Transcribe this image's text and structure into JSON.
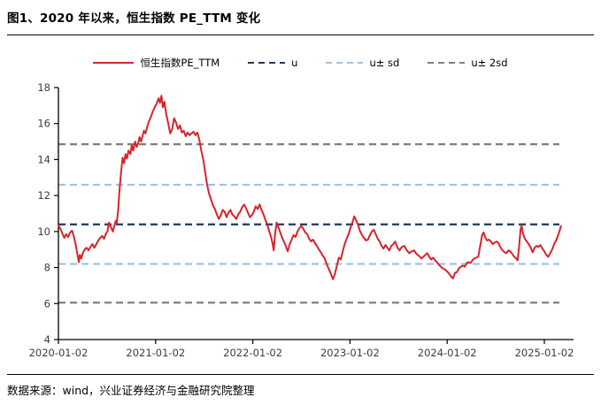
{
  "header": {
    "title": "图1、2020 年以来，恒生指数 PE_TTM 变化"
  },
  "footer": {
    "source": "数据来源：wind，兴业证券经济与金融研究院整理"
  },
  "colors": {
    "series_red": "#d9232b",
    "mean_navy": "#1f3864",
    "sd_lightblue": "#9dc3e6",
    "sd2_gray": "#7f7f7f",
    "axis": "#000000",
    "tick_label": "#3d3d3d"
  },
  "legend": {
    "items": [
      {
        "label": "恒生指数PE_TTM",
        "color": "#d9232b",
        "style": "solid"
      },
      {
        "label": "u",
        "color": "#1f3864",
        "style": "dashed"
      },
      {
        "label": "u± sd",
        "color": "#9dc3e6",
        "style": "dashed"
      },
      {
        "label": "u± 2sd",
        "color": "#7f7f7f",
        "style": "dashed"
      }
    ]
  },
  "chart_data": {
    "type": "line",
    "title": "恒生指数 PE_TTM 变化 (2020年以来)",
    "xlabel": "",
    "ylabel": "",
    "grid": false,
    "legend_position": "top",
    "ylim": [
      4,
      18
    ],
    "y_ticks": [
      4,
      6,
      8,
      10,
      12,
      14,
      16,
      18
    ],
    "x_tick_labels": [
      "2020-01-02",
      "2021-01-02",
      "2022-01-02",
      "2023-01-02",
      "2024-01-02",
      "2025-01-02"
    ],
    "x_tick_years": [
      0,
      1,
      2,
      3,
      4,
      5
    ],
    "x_end_years": 5.17,
    "ref_lines": [
      {
        "name": "u+2sd",
        "value": 14.85,
        "color": "#7f7f7f"
      },
      {
        "name": "u+sd",
        "value": 12.6,
        "color": "#9dc3e6"
      },
      {
        "name": "u",
        "value": 10.4,
        "color": "#1f3864"
      },
      {
        "name": "u-sd",
        "value": 8.2,
        "color": "#9dc3e6"
      },
      {
        "name": "u-2sd",
        "value": 6.05,
        "color": "#7f7f7f"
      }
    ],
    "series": [
      {
        "name": "恒生指数PE_TTM",
        "color": "#d9232b",
        "x_unit": "years_since_2020-01-02",
        "points": [
          [
            0.0,
            10.35
          ],
          [
            0.02,
            10.15
          ],
          [
            0.04,
            9.9
          ],
          [
            0.06,
            9.65
          ],
          [
            0.08,
            9.85
          ],
          [
            0.1,
            9.7
          ],
          [
            0.12,
            9.95
          ],
          [
            0.14,
            10.05
          ],
          [
            0.16,
            9.7
          ],
          [
            0.18,
            9.2
          ],
          [
            0.195,
            8.75
          ],
          [
            0.21,
            8.3
          ],
          [
            0.22,
            8.7
          ],
          [
            0.235,
            8.5
          ],
          [
            0.25,
            8.8
          ],
          [
            0.27,
            9.0
          ],
          [
            0.29,
            9.1
          ],
          [
            0.31,
            8.95
          ],
          [
            0.33,
            9.15
          ],
          [
            0.35,
            9.3
          ],
          [
            0.37,
            9.1
          ],
          [
            0.39,
            9.3
          ],
          [
            0.41,
            9.5
          ],
          [
            0.43,
            9.65
          ],
          [
            0.45,
            9.75
          ],
          [
            0.47,
            9.6
          ],
          [
            0.49,
            9.9
          ],
          [
            0.505,
            10.0
          ],
          [
            0.52,
            10.5
          ],
          [
            0.54,
            10.25
          ],
          [
            0.56,
            10.0
          ],
          [
            0.575,
            10.3
          ],
          [
            0.59,
            10.6
          ],
          [
            0.6,
            10.45
          ],
          [
            0.615,
            11.2
          ],
          [
            0.63,
            12.4
          ],
          [
            0.645,
            13.3
          ],
          [
            0.66,
            14.1
          ],
          [
            0.675,
            13.8
          ],
          [
            0.69,
            14.3
          ],
          [
            0.705,
            14.05
          ],
          [
            0.72,
            14.5
          ],
          [
            0.74,
            14.3
          ],
          [
            0.755,
            14.8
          ],
          [
            0.77,
            14.5
          ],
          [
            0.79,
            15.0
          ],
          [
            0.805,
            14.7
          ],
          [
            0.82,
            14.9
          ],
          [
            0.835,
            15.25
          ],
          [
            0.85,
            15.0
          ],
          [
            0.865,
            15.3
          ],
          [
            0.88,
            15.6
          ],
          [
            0.895,
            15.45
          ],
          [
            0.91,
            15.75
          ],
          [
            0.93,
            16.1
          ],
          [
            0.95,
            16.35
          ],
          [
            0.97,
            16.65
          ],
          [
            0.99,
            16.9
          ],
          [
            1.01,
            17.1
          ],
          [
            1.03,
            17.4
          ],
          [
            1.045,
            17.15
          ],
          [
            1.06,
            17.55
          ],
          [
            1.075,
            16.9
          ],
          [
            1.09,
            17.2
          ],
          [
            1.11,
            16.5
          ],
          [
            1.13,
            16.0
          ],
          [
            1.15,
            15.45
          ],
          [
            1.17,
            15.7
          ],
          [
            1.19,
            16.3
          ],
          [
            1.21,
            16.05
          ],
          [
            1.23,
            15.7
          ],
          [
            1.25,
            15.9
          ],
          [
            1.27,
            15.5
          ],
          [
            1.29,
            15.6
          ],
          [
            1.31,
            15.3
          ],
          [
            1.33,
            15.5
          ],
          [
            1.35,
            15.35
          ],
          [
            1.37,
            15.45
          ],
          [
            1.39,
            15.55
          ],
          [
            1.41,
            15.35
          ],
          [
            1.43,
            15.5
          ],
          [
            1.45,
            15.1
          ],
          [
            1.47,
            14.5
          ],
          [
            1.49,
            14.0
          ],
          [
            1.51,
            13.3
          ],
          [
            1.53,
            12.6
          ],
          [
            1.55,
            12.1
          ],
          [
            1.57,
            11.8
          ],
          [
            1.59,
            11.45
          ],
          [
            1.61,
            11.25
          ],
          [
            1.63,
            10.95
          ],
          [
            1.65,
            10.7
          ],
          [
            1.67,
            10.9
          ],
          [
            1.69,
            11.2
          ],
          [
            1.71,
            11.1
          ],
          [
            1.73,
            10.8
          ],
          [
            1.75,
            11.05
          ],
          [
            1.77,
            11.2
          ],
          [
            1.79,
            10.95
          ],
          [
            1.81,
            10.85
          ],
          [
            1.83,
            10.7
          ],
          [
            1.85,
            10.95
          ],
          [
            1.87,
            11.1
          ],
          [
            1.89,
            11.35
          ],
          [
            1.91,
            11.5
          ],
          [
            1.93,
            11.3
          ],
          [
            1.95,
            11.05
          ],
          [
            1.97,
            10.8
          ],
          [
            1.99,
            10.9
          ],
          [
            2.01,
            11.1
          ],
          [
            2.03,
            11.4
          ],
          [
            2.05,
            11.25
          ],
          [
            2.07,
            11.5
          ],
          [
            2.09,
            11.2
          ],
          [
            2.11,
            10.95
          ],
          [
            2.13,
            10.65
          ],
          [
            2.15,
            10.35
          ],
          [
            2.17,
            10.0
          ],
          [
            2.19,
            9.65
          ],
          [
            2.205,
            9.3
          ],
          [
            2.215,
            8.95
          ],
          [
            2.23,
            9.9
          ],
          [
            2.245,
            10.5
          ],
          [
            2.26,
            10.3
          ],
          [
            2.28,
            10.0
          ],
          [
            2.3,
            9.7
          ],
          [
            2.32,
            9.45
          ],
          [
            2.34,
            9.2
          ],
          [
            2.36,
            8.9
          ],
          [
            2.38,
            9.3
          ],
          [
            2.4,
            9.55
          ],
          [
            2.42,
            9.8
          ],
          [
            2.44,
            9.7
          ],
          [
            2.46,
            10.0
          ],
          [
            2.48,
            10.2
          ],
          [
            2.5,
            10.3
          ],
          [
            2.52,
            10.15
          ],
          [
            2.54,
            9.95
          ],
          [
            2.56,
            9.85
          ],
          [
            2.58,
            9.6
          ],
          [
            2.6,
            9.45
          ],
          [
            2.62,
            9.55
          ],
          [
            2.64,
            9.35
          ],
          [
            2.66,
            9.2
          ],
          [
            2.68,
            9.0
          ],
          [
            2.7,
            8.85
          ],
          [
            2.72,
            8.65
          ],
          [
            2.74,
            8.5
          ],
          [
            2.76,
            8.2
          ],
          [
            2.78,
            7.95
          ],
          [
            2.8,
            7.7
          ],
          [
            2.825,
            7.35
          ],
          [
            2.845,
            7.65
          ],
          [
            2.865,
            8.1
          ],
          [
            2.885,
            8.55
          ],
          [
            2.905,
            8.45
          ],
          [
            2.925,
            8.9
          ],
          [
            2.945,
            9.3
          ],
          [
            2.965,
            9.6
          ],
          [
            2.985,
            9.85
          ],
          [
            3.005,
            10.2
          ],
          [
            3.025,
            10.5
          ],
          [
            3.045,
            10.85
          ],
          [
            3.065,
            10.6
          ],
          [
            3.085,
            10.35
          ],
          [
            3.105,
            10.0
          ],
          [
            3.125,
            9.8
          ],
          [
            3.145,
            9.65
          ],
          [
            3.165,
            9.5
          ],
          [
            3.185,
            9.55
          ],
          [
            3.205,
            9.8
          ],
          [
            3.225,
            10.0
          ],
          [
            3.245,
            10.1
          ],
          [
            3.265,
            9.85
          ],
          [
            3.285,
            9.6
          ],
          [
            3.305,
            9.45
          ],
          [
            3.325,
            9.2
          ],
          [
            3.345,
            9.05
          ],
          [
            3.365,
            9.25
          ],
          [
            3.385,
            9.1
          ],
          [
            3.405,
            8.95
          ],
          [
            3.425,
            9.2
          ],
          [
            3.445,
            9.3
          ],
          [
            3.465,
            9.45
          ],
          [
            3.49,
            9.1
          ],
          [
            3.51,
            8.95
          ],
          [
            3.535,
            9.15
          ],
          [
            3.56,
            9.2
          ],
          [
            3.585,
            8.95
          ],
          [
            3.61,
            8.8
          ],
          [
            3.635,
            8.9
          ],
          [
            3.66,
            8.95
          ],
          [
            3.685,
            8.75
          ],
          [
            3.71,
            8.65
          ],
          [
            3.735,
            8.5
          ],
          [
            3.755,
            8.6
          ],
          [
            3.775,
            8.7
          ],
          [
            3.795,
            8.8
          ],
          [
            3.815,
            8.6
          ],
          [
            3.835,
            8.45
          ],
          [
            3.855,
            8.55
          ],
          [
            3.875,
            8.4
          ],
          [
            3.895,
            8.3
          ],
          [
            3.915,
            8.15
          ],
          [
            3.935,
            8.05
          ],
          [
            3.955,
            7.95
          ],
          [
            3.975,
            7.9
          ],
          [
            3.995,
            7.8
          ],
          [
            4.015,
            7.7
          ],
          [
            4.04,
            7.5
          ],
          [
            4.06,
            7.4
          ],
          [
            4.08,
            7.7
          ],
          [
            4.1,
            7.75
          ],
          [
            4.12,
            7.95
          ],
          [
            4.14,
            8.05
          ],
          [
            4.16,
            8.1
          ],
          [
            4.18,
            8.05
          ],
          [
            4.2,
            8.25
          ],
          [
            4.22,
            8.3
          ],
          [
            4.24,
            8.25
          ],
          [
            4.26,
            8.4
          ],
          [
            4.28,
            8.5
          ],
          [
            4.3,
            8.55
          ],
          [
            4.32,
            8.6
          ],
          [
            4.34,
            9.2
          ],
          [
            4.36,
            9.8
          ],
          [
            4.375,
            9.95
          ],
          [
            4.39,
            9.7
          ],
          [
            4.41,
            9.5
          ],
          [
            4.43,
            9.55
          ],
          [
            4.45,
            9.45
          ],
          [
            4.47,
            9.3
          ],
          [
            4.49,
            9.4
          ],
          [
            4.51,
            9.45
          ],
          [
            4.53,
            9.35
          ],
          [
            4.55,
            9.1
          ],
          [
            4.57,
            8.95
          ],
          [
            4.59,
            8.85
          ],
          [
            4.61,
            8.8
          ],
          [
            4.63,
            8.95
          ],
          [
            4.65,
            8.9
          ],
          [
            4.67,
            8.75
          ],
          [
            4.69,
            8.6
          ],
          [
            4.71,
            8.5
          ],
          [
            4.725,
            8.4
          ],
          [
            4.74,
            9.2
          ],
          [
            4.755,
            10.1
          ],
          [
            4.765,
            10.35
          ],
          [
            4.78,
            9.9
          ],
          [
            4.8,
            9.6
          ],
          [
            4.82,
            9.45
          ],
          [
            4.84,
            9.3
          ],
          [
            4.86,
            9.1
          ],
          [
            4.88,
            8.85
          ],
          [
            4.9,
            9.1
          ],
          [
            4.92,
            9.2
          ],
          [
            4.94,
            9.15
          ],
          [
            4.96,
            9.25
          ],
          [
            4.98,
            9.05
          ],
          [
            5.0,
            8.9
          ],
          [
            5.02,
            8.7
          ],
          [
            5.04,
            8.6
          ],
          [
            5.06,
            8.8
          ],
          [
            5.08,
            9.0
          ],
          [
            5.1,
            9.3
          ],
          [
            5.125,
            9.55
          ],
          [
            5.145,
            9.85
          ],
          [
            5.16,
            10.1
          ],
          [
            5.17,
            10.3
          ]
        ]
      }
    ]
  }
}
